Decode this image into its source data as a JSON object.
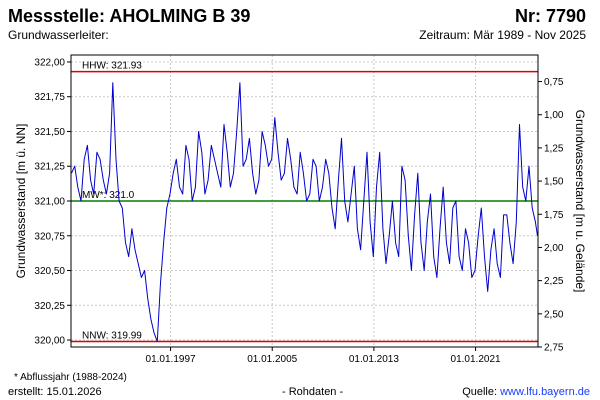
{
  "header": {
    "title": "Messstelle: AHOLMING B 39",
    "number": "Nr: 7790",
    "aquifer_label": "Grundwasserleiter:",
    "period": "Zeitraum: Mär 1989 - Nov 2025"
  },
  "footer": {
    "footnote": "* Abflussjahr (1988-2024)",
    "created": "erstellt:  15.01.2026",
    "data_type": "- Rohdaten -",
    "source_label": "Quelle: ",
    "source_link": "www.lfu.bayern.de"
  },
  "colors": {
    "series": "#0000cc",
    "hhw": "#e00000",
    "nnw": "#e00000",
    "mhw": "#008000",
    "grid": "#c8c8c8"
  },
  "chart_data": {
    "type": "line",
    "ylabel": "Grundwasserstand [m ü. NN]",
    "y2label": "Grundwasserstand [m u. Gelände]",
    "ylim": [
      319.95,
      322.05
    ],
    "yticks": [
      "322,00",
      "321,75",
      "321,50",
      "321,25",
      "321,00",
      "320,75",
      "320,50",
      "320,25",
      "320,00"
    ],
    "y2lim_below_ground": [
      0.55,
      2.75
    ],
    "y2ticks": [
      "0,75",
      "1,00",
      "1,25",
      "1,50",
      "1,75",
      "2,00",
      "2,25",
      "2,50",
      "2,75"
    ],
    "xlim": [
      "1989-03-01",
      "2025-11-30"
    ],
    "xticks": [
      "01.01.1997",
      "01.01.2005",
      "01.01.2013",
      "01.01.2021"
    ],
    "grid": true,
    "reference_lines": [
      {
        "label": "HHW: 321.93",
        "value": 321.93,
        "color": "#e00000"
      },
      {
        "label": "MW*: 321.0",
        "value": 321.0,
        "color": "#008000"
      },
      {
        "label": "NNW: 319.99",
        "value": 319.99,
        "color": "#e00000"
      }
    ],
    "series": [
      {
        "x": [
          "1989-03",
          "1989-06",
          "1989-09",
          "1989-12",
          "1990-03",
          "1990-06",
          "1990-09",
          "1990-12",
          "1991-03",
          "1991-06",
          "1991-09",
          "1991-12",
          "1992-03",
          "1992-06",
          "1992-09",
          "1992-12",
          "1993-03",
          "1993-06",
          "1993-09",
          "1993-12",
          "1994-03",
          "1994-06",
          "1994-09",
          "1994-12",
          "1995-03",
          "1995-06",
          "1995-09",
          "1995-12",
          "1996-03",
          "1996-06",
          "1996-09",
          "1996-12",
          "1997-03",
          "1997-06",
          "1997-09",
          "1997-12",
          "1998-03",
          "1998-06",
          "1998-09",
          "1998-12",
          "1999-03",
          "1999-06",
          "1999-09",
          "1999-12",
          "2000-03",
          "2000-06",
          "2000-09",
          "2000-12",
          "2001-03",
          "2001-06",
          "2001-09",
          "2001-12",
          "2002-03",
          "2002-06",
          "2002-09",
          "2002-12",
          "2003-03",
          "2003-06",
          "2003-09",
          "2003-12",
          "2004-03",
          "2004-06",
          "2004-09",
          "2004-12",
          "2005-03",
          "2005-06",
          "2005-09",
          "2005-12",
          "2006-03",
          "2006-06",
          "2006-09",
          "2006-12",
          "2007-03",
          "2007-06",
          "2007-09",
          "2007-12",
          "2008-03",
          "2008-06",
          "2008-09",
          "2008-12",
          "2009-03",
          "2009-06",
          "2009-09",
          "2009-12",
          "2010-03",
          "2010-06",
          "2010-09",
          "2010-12",
          "2011-03",
          "2011-06",
          "2011-09",
          "2011-12",
          "2012-03",
          "2012-06",
          "2012-09",
          "2012-12",
          "2013-03",
          "2013-06",
          "2013-09",
          "2013-12",
          "2014-03",
          "2014-06",
          "2014-09",
          "2014-12",
          "2015-03",
          "2015-06",
          "2015-09",
          "2015-12",
          "2016-03",
          "2016-06",
          "2016-09",
          "2016-12",
          "2017-03",
          "2017-06",
          "2017-09",
          "2017-12",
          "2018-03",
          "2018-06",
          "2018-09",
          "2018-12",
          "2019-03",
          "2019-06",
          "2019-09",
          "2019-12",
          "2020-03",
          "2020-06",
          "2020-09",
          "2020-12",
          "2021-03",
          "2021-06",
          "2021-09",
          "2021-12",
          "2022-03",
          "2022-06",
          "2022-09",
          "2022-12",
          "2023-03",
          "2023-06",
          "2023-09",
          "2023-12",
          "2024-03",
          "2024-06",
          "2024-09",
          "2024-12",
          "2025-03",
          "2025-06",
          "2025-09",
          "2025-11"
        ],
        "y": [
          321.2,
          321.25,
          321.1,
          321.0,
          321.3,
          321.4,
          321.15,
          321.05,
          321.35,
          321.3,
          321.15,
          321.05,
          321.2,
          321.85,
          321.3,
          321.0,
          320.95,
          320.7,
          320.6,
          320.8,
          320.65,
          320.55,
          320.45,
          320.5,
          320.3,
          320.15,
          320.05,
          319.99,
          320.4,
          320.7,
          320.95,
          321.05,
          321.2,
          321.3,
          321.1,
          321.05,
          321.4,
          321.3,
          321.0,
          321.1,
          321.5,
          321.35,
          321.05,
          321.15,
          321.4,
          321.3,
          321.2,
          321.1,
          321.55,
          321.35,
          321.1,
          321.2,
          321.5,
          321.85,
          321.25,
          321.3,
          321.45,
          321.2,
          321.05,
          321.15,
          321.5,
          321.4,
          321.25,
          321.3,
          321.6,
          321.35,
          321.15,
          321.2,
          321.45,
          321.3,
          321.1,
          321.05,
          321.35,
          321.2,
          321.0,
          321.05,
          321.3,
          321.25,
          321.0,
          321.1,
          321.3,
          321.2,
          320.95,
          320.8,
          321.15,
          321.45,
          321.0,
          320.85,
          321.05,
          321.25,
          320.8,
          320.65,
          321.0,
          321.35,
          320.85,
          320.6,
          321.1,
          321.35,
          320.8,
          320.55,
          320.75,
          321.0,
          320.7,
          320.6,
          321.25,
          321.15,
          320.75,
          320.5,
          320.9,
          321.2,
          320.7,
          320.5,
          320.85,
          321.05,
          320.6,
          320.45,
          320.8,
          321.1,
          320.7,
          320.55,
          320.95,
          321.0,
          320.6,
          320.5,
          320.8,
          320.7,
          320.45,
          320.5,
          320.75,
          320.95,
          320.6,
          320.35,
          320.65,
          320.8,
          320.55,
          320.45,
          320.9,
          320.9,
          320.7,
          320.55,
          320.85,
          321.55,
          321.1,
          321.0,
          321.25,
          320.95,
          320.85,
          320.75
        ]
      }
    ]
  }
}
